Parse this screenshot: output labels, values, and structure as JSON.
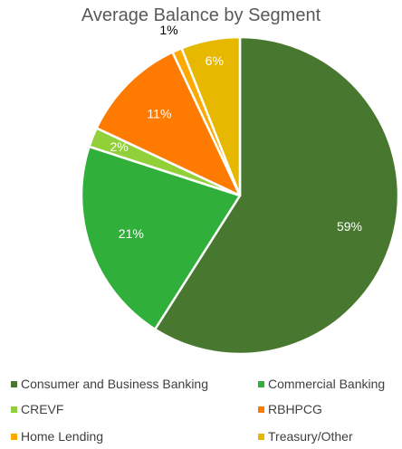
{
  "chart_data": {
    "type": "pie",
    "title": "Average Balance by Segment",
    "series": [
      {
        "name": "",
        "values": [
          59,
          21,
          2,
          11,
          1,
          6
        ]
      }
    ],
    "categories": [
      "Consumer and Business Banking",
      "Commercial Banking",
      "CREVF",
      "RBHPCG",
      "Home Lending",
      "Treasury/Other"
    ],
    "slices": [
      {
        "label": "Consumer and Business Banking",
        "value": 59,
        "display": "59%",
        "color": "#48782f"
      },
      {
        "label": "Commercial Banking",
        "value": 21,
        "display": "21%",
        "color": "#30b03b"
      },
      {
        "label": "CREVF",
        "value": 2,
        "display": "2%",
        "color": "#92d03a"
      },
      {
        "label": "RBHPCG",
        "value": 11,
        "display": "11%",
        "color": "#ff7a00"
      },
      {
        "label": "Home Lending",
        "value": 1,
        "display": "1%",
        "color": "#ffa800"
      },
      {
        "label": "Treasury/Other",
        "value": 6,
        "display": "6%",
        "color": "#e6b800"
      }
    ],
    "legend_position": "bottom",
    "start_angle": "12 o'clock",
    "direction": "clockwise"
  }
}
